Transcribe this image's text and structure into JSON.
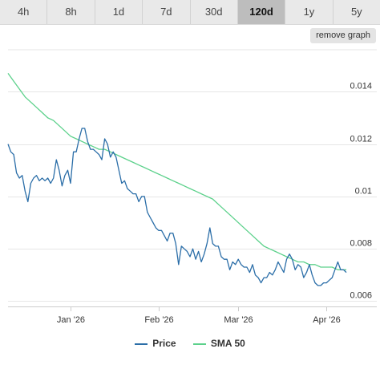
{
  "tabs": [
    {
      "label": "4h",
      "active": false
    },
    {
      "label": "8h",
      "active": false
    },
    {
      "label": "1d",
      "active": false
    },
    {
      "label": "7d",
      "active": false
    },
    {
      "label": "30d",
      "active": false
    },
    {
      "label": "120d",
      "active": true
    },
    {
      "label": "1y",
      "active": false
    },
    {
      "label": "5y",
      "active": false
    }
  ],
  "remove_graph_label": "remove graph",
  "colors": {
    "price": "#2b6ea8",
    "sma": "#5cd18b",
    "grid": "#e6e6e6"
  },
  "chart_data": {
    "type": "line",
    "x_ticks": [
      {
        "label": "Jan '26",
        "day": 22
      },
      {
        "label": "Feb '26",
        "day": 53
      },
      {
        "label": "Mar '26",
        "day": 81
      },
      {
        "label": "Apr '26",
        "day": 112
      }
    ],
    "xlim": [
      0,
      119
    ],
    "y_ticks": [
      0.006,
      0.008,
      0.01,
      0.012,
      0.014
    ],
    "y_tick_labels": [
      "0.006",
      "0.008",
      "0.01",
      "0.012",
      "0.014"
    ],
    "ylim": [
      0.0058,
      0.0156
    ],
    "grid": true,
    "legend_position": "bottom",
    "series": [
      {
        "name": "Price",
        "color": "#2b6ea8",
        "points": [
          [
            0,
            0.012
          ],
          [
            1,
            0.0117
          ],
          [
            2,
            0.0116
          ],
          [
            3,
            0.0109
          ],
          [
            4,
            0.0107
          ],
          [
            5,
            0.0108
          ],
          [
            6,
            0.0102
          ],
          [
            7,
            0.0098
          ],
          [
            8,
            0.0105
          ],
          [
            9,
            0.0107
          ],
          [
            10,
            0.0108
          ],
          [
            11,
            0.0106
          ],
          [
            12,
            0.0107
          ],
          [
            13,
            0.0106
          ],
          [
            14,
            0.0107
          ],
          [
            15,
            0.0105
          ],
          [
            16,
            0.0107
          ],
          [
            17,
            0.0114
          ],
          [
            18,
            0.011
          ],
          [
            19,
            0.0104
          ],
          [
            20,
            0.0108
          ],
          [
            21,
            0.011
          ],
          [
            22,
            0.0105
          ],
          [
            23,
            0.0117
          ],
          [
            24,
            0.0117
          ],
          [
            25,
            0.0122
          ],
          [
            26,
            0.0126
          ],
          [
            27,
            0.0126
          ],
          [
            28,
            0.0121
          ],
          [
            29,
            0.0118
          ],
          [
            30,
            0.0118
          ],
          [
            31,
            0.0117
          ],
          [
            32,
            0.0116
          ],
          [
            33,
            0.0114
          ],
          [
            34,
            0.0122
          ],
          [
            35,
            0.012
          ],
          [
            36,
            0.0115
          ],
          [
            37,
            0.0117
          ],
          [
            38,
            0.0115
          ],
          [
            39,
            0.011
          ],
          [
            40,
            0.0105
          ],
          [
            41,
            0.0106
          ],
          [
            42,
            0.0103
          ],
          [
            43,
            0.0102
          ],
          [
            44,
            0.0101
          ],
          [
            45,
            0.0101
          ],
          [
            46,
            0.0098
          ],
          [
            47,
            0.01
          ],
          [
            48,
            0.01
          ],
          [
            49,
            0.0094
          ],
          [
            50,
            0.0092
          ],
          [
            51,
            0.009
          ],
          [
            52,
            0.0088
          ],
          [
            53,
            0.0087
          ],
          [
            54,
            0.0087
          ],
          [
            55,
            0.0085
          ],
          [
            56,
            0.0083
          ],
          [
            57,
            0.0086
          ],
          [
            58,
            0.0086
          ],
          [
            59,
            0.0082
          ],
          [
            60,
            0.0074
          ],
          [
            61,
            0.0081
          ],
          [
            62,
            0.008
          ],
          [
            63,
            0.0079
          ],
          [
            64,
            0.0077
          ],
          [
            65,
            0.008
          ],
          [
            66,
            0.0076
          ],
          [
            67,
            0.0079
          ],
          [
            68,
            0.0075
          ],
          [
            69,
            0.0078
          ],
          [
            70,
            0.0082
          ],
          [
            71,
            0.0088
          ],
          [
            72,
            0.0082
          ],
          [
            73,
            0.0081
          ],
          [
            74,
            0.0081
          ],
          [
            75,
            0.0077
          ],
          [
            76,
            0.0076
          ],
          [
            77,
            0.0076
          ],
          [
            78,
            0.0072
          ],
          [
            79,
            0.0075
          ],
          [
            80,
            0.0074
          ],
          [
            81,
            0.0076
          ],
          [
            82,
            0.0074
          ],
          [
            83,
            0.0073
          ],
          [
            84,
            0.0073
          ],
          [
            85,
            0.0071
          ],
          [
            86,
            0.0074
          ],
          [
            87,
            0.007
          ],
          [
            88,
            0.0069
          ],
          [
            89,
            0.0067
          ],
          [
            90,
            0.0069
          ],
          [
            91,
            0.0069
          ],
          [
            92,
            0.0071
          ],
          [
            93,
            0.007
          ],
          [
            94,
            0.0072
          ],
          [
            95,
            0.0075
          ],
          [
            96,
            0.0073
          ],
          [
            97,
            0.0071
          ],
          [
            98,
            0.0076
          ],
          [
            99,
            0.0078
          ],
          [
            100,
            0.0076
          ],
          [
            101,
            0.0072
          ],
          [
            102,
            0.0074
          ],
          [
            103,
            0.0073
          ],
          [
            104,
            0.0069
          ],
          [
            105,
            0.0071
          ],
          [
            106,
            0.0074
          ],
          [
            107,
            0.007
          ],
          [
            108,
            0.0067
          ],
          [
            109,
            0.0066
          ],
          [
            110,
            0.0066
          ],
          [
            111,
            0.0067
          ],
          [
            112,
            0.0067
          ],
          [
            113,
            0.0068
          ],
          [
            114,
            0.0069
          ],
          [
            115,
            0.0072
          ],
          [
            116,
            0.0075
          ],
          [
            117,
            0.0072
          ],
          [
            118,
            0.0072
          ],
          [
            119,
            0.0071
          ]
        ]
      },
      {
        "name": "SMA 50",
        "color": "#5cd18b",
        "points": [
          [
            0,
            0.0147
          ],
          [
            2,
            0.0144
          ],
          [
            4,
            0.0141
          ],
          [
            6,
            0.0138
          ],
          [
            8,
            0.0136
          ],
          [
            10,
            0.0134
          ],
          [
            12,
            0.0132
          ],
          [
            14,
            0.013
          ],
          [
            16,
            0.0129
          ],
          [
            18,
            0.0127
          ],
          [
            20,
            0.0125
          ],
          [
            22,
            0.0123
          ],
          [
            24,
            0.0122
          ],
          [
            26,
            0.0121
          ],
          [
            28,
            0.012
          ],
          [
            30,
            0.0119
          ],
          [
            32,
            0.0118
          ],
          [
            34,
            0.0118
          ],
          [
            36,
            0.0117
          ],
          [
            38,
            0.0116
          ],
          [
            40,
            0.0115
          ],
          [
            42,
            0.0114
          ],
          [
            44,
            0.0113
          ],
          [
            46,
            0.0112
          ],
          [
            48,
            0.0111
          ],
          [
            50,
            0.011
          ],
          [
            52,
            0.0109
          ],
          [
            54,
            0.0108
          ],
          [
            56,
            0.0107
          ],
          [
            58,
            0.0106
          ],
          [
            60,
            0.0105
          ],
          [
            62,
            0.0104
          ],
          [
            64,
            0.0103
          ],
          [
            66,
            0.0102
          ],
          [
            68,
            0.0101
          ],
          [
            70,
            0.01
          ],
          [
            72,
            0.0099
          ],
          [
            74,
            0.0097
          ],
          [
            76,
            0.0095
          ],
          [
            78,
            0.0093
          ],
          [
            80,
            0.0091
          ],
          [
            82,
            0.0089
          ],
          [
            84,
            0.0087
          ],
          [
            86,
            0.0085
          ],
          [
            88,
            0.0083
          ],
          [
            90,
            0.0081
          ],
          [
            92,
            0.008
          ],
          [
            94,
            0.0079
          ],
          [
            96,
            0.0078
          ],
          [
            98,
            0.0077
          ],
          [
            100,
            0.0076
          ],
          [
            102,
            0.0075
          ],
          [
            104,
            0.0075
          ],
          [
            106,
            0.0074
          ],
          [
            108,
            0.0074
          ],
          [
            110,
            0.0073
          ],
          [
            112,
            0.0073
          ],
          [
            114,
            0.0073
          ],
          [
            116,
            0.0072
          ],
          [
            118,
            0.0072
          ],
          [
            119,
            0.0072
          ]
        ]
      }
    ]
  }
}
